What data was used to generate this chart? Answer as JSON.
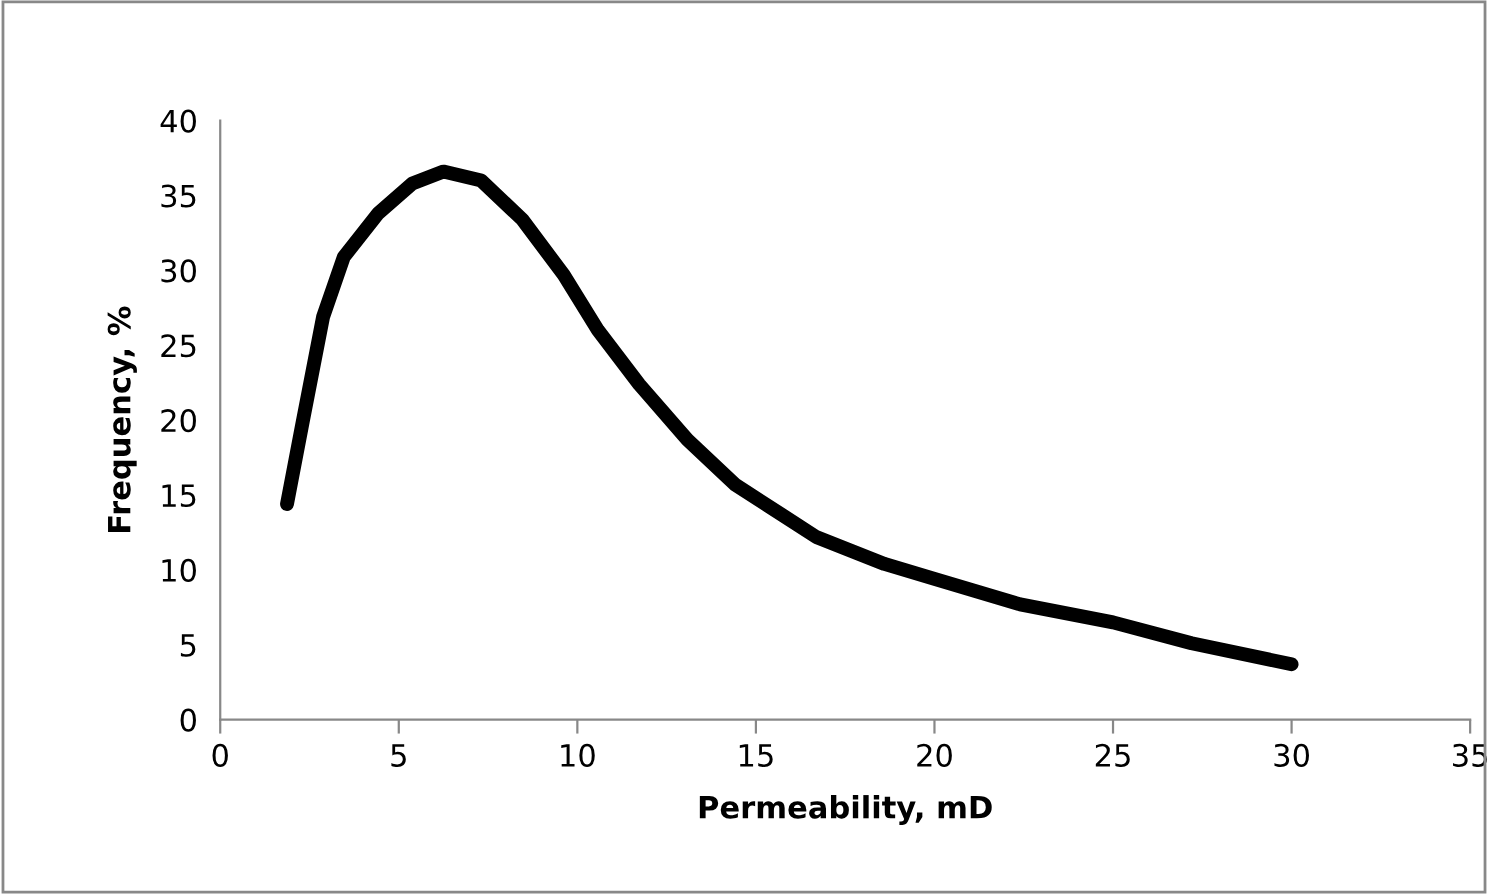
{
  "chart_data": {
    "type": "line",
    "xlabel": "Permeability, mD",
    "ylabel": "Frequency, %",
    "x": [
      1.87,
      2.31,
      2.88,
      3.46,
      4.42,
      5.38,
      6.25,
      7.31,
      8.46,
      9.62,
      10.58,
      11.73,
      13.08,
      14.42,
      16.69,
      18.6,
      20.0,
      22.4,
      25.0,
      27.2,
      30.0
    ],
    "series": [
      {
        "color": "#000000",
        "values": [
          14.4,
          19.9,
          26.9,
          30.9,
          33.8,
          35.8,
          36.6,
          36.0,
          33.4,
          29.7,
          26.0,
          22.4,
          18.7,
          15.7,
          12.2,
          10.4,
          9.4,
          7.7,
          6.5,
          5.1,
          3.7
        ]
      }
    ],
    "xlim": [
      0,
      35
    ],
    "ylim": [
      0,
      40
    ],
    "xticks": [
      0,
      5,
      10,
      15,
      20,
      25,
      30,
      35
    ],
    "yticks": [
      0,
      5,
      10,
      15,
      20,
      25,
      30,
      35,
      40
    ],
    "grid": false,
    "legend": false,
    "marker": "none",
    "line_style": "solid"
  }
}
